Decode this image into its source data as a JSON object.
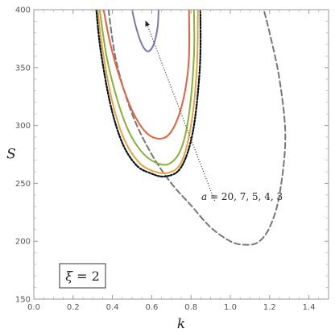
{
  "chart_data": {
    "type": "line",
    "title": "",
    "xlabel": "k",
    "ylabel": "S",
    "xlim": [
      0.0,
      1.5
    ],
    "ylim": [
      150,
      400
    ],
    "x_ticks": [
      "0.0",
      "0.2",
      "0.4",
      "0.6",
      "0.8",
      "1.0",
      "1.2",
      "1.4"
    ],
    "y_ticks": [
      "150",
      "200",
      "250",
      "300",
      "350",
      "400"
    ],
    "grid": false,
    "legend": "none",
    "frame_label": {
      "symbol": "ξ",
      "value": " = 2"
    },
    "annotation": {
      "text_var": "a",
      "text_rest": " = 20, 7, 5, 4, 3",
      "arrow_from": {
        "k": 0.92,
        "S": 235
      },
      "arrow_to": {
        "k": 0.57,
        "S": 390
      }
    },
    "series": [
      {
        "color": "#7c75b6",
        "style": "solid",
        "points": [
          [
            0.5,
            400
          ],
          [
            0.52,
            385
          ],
          [
            0.55,
            370
          ],
          [
            0.58,
            364
          ],
          [
            0.61,
            370
          ],
          [
            0.63,
            385
          ],
          [
            0.635,
            400
          ]
        ]
      },
      {
        "color": "#e8603c",
        "style": "solid",
        "points": [
          [
            0.355,
            400
          ],
          [
            0.39,
            370
          ],
          [
            0.44,
            340
          ],
          [
            0.5,
            313
          ],
          [
            0.56,
            296
          ],
          [
            0.62,
            289
          ],
          [
            0.68,
            291
          ],
          [
            0.73,
            305
          ],
          [
            0.77,
            330
          ],
          [
            0.79,
            360
          ],
          [
            0.79,
            400
          ]
        ]
      },
      {
        "color": "#8bb03a",
        "style": "solid",
        "points": [
          [
            0.335,
            400
          ],
          [
            0.37,
            360
          ],
          [
            0.42,
            325
          ],
          [
            0.48,
            296
          ],
          [
            0.55,
            277
          ],
          [
            0.62,
            268
          ],
          [
            0.69,
            267
          ],
          [
            0.75,
            280
          ],
          [
            0.79,
            310
          ],
          [
            0.815,
            360
          ],
          [
            0.815,
            400
          ]
        ]
      },
      {
        "color": "#e8a33d",
        "style": "solid",
        "points": [
          [
            0.325,
            400
          ],
          [
            0.35,
            365
          ],
          [
            0.4,
            320
          ],
          [
            0.46,
            288
          ],
          [
            0.53,
            269
          ],
          [
            0.6,
            261
          ],
          [
            0.68,
            259
          ],
          [
            0.75,
            268
          ],
          [
            0.8,
            300
          ],
          [
            0.83,
            350
          ],
          [
            0.835,
            400
          ]
        ]
      },
      {
        "color": "#111111",
        "style": "dotted",
        "points": [
          [
            0.318,
            400
          ],
          [
            0.34,
            365
          ],
          [
            0.39,
            318
          ],
          [
            0.45,
            285
          ],
          [
            0.52,
            266
          ],
          [
            0.59,
            259
          ],
          [
            0.67,
            256
          ],
          [
            0.75,
            264
          ],
          [
            0.81,
            295
          ],
          [
            0.845,
            350
          ],
          [
            0.848,
            400
          ]
        ]
      },
      {
        "color": "#2b78b8",
        "style": "dashed",
        "points": [
          [
            0.318,
            400
          ],
          [
            0.34,
            365
          ],
          [
            0.39,
            318
          ],
          [
            0.45,
            285
          ],
          [
            0.52,
            266
          ],
          [
            0.59,
            259
          ],
          [
            0.67,
            256
          ],
          [
            0.75,
            264
          ],
          [
            0.81,
            295
          ],
          [
            0.845,
            350
          ],
          [
            0.848,
            400
          ]
        ]
      },
      {
        "color": "#777777",
        "style": "dashed",
        "points": [
          [
            0.38,
            400
          ],
          [
            0.42,
            355
          ],
          [
            0.5,
            310
          ],
          [
            0.6,
            275
          ],
          [
            0.7,
            250
          ],
          [
            0.8,
            231
          ],
          [
            0.9,
            212
          ],
          [
            1.0,
            200
          ],
          [
            1.07,
            197
          ],
          [
            1.14,
            199
          ],
          [
            1.2,
            212
          ],
          [
            1.25,
            240
          ],
          [
            1.28,
            290
          ],
          [
            1.25,
            340
          ],
          [
            1.2,
            380
          ],
          [
            1.17,
            400
          ]
        ]
      }
    ]
  }
}
